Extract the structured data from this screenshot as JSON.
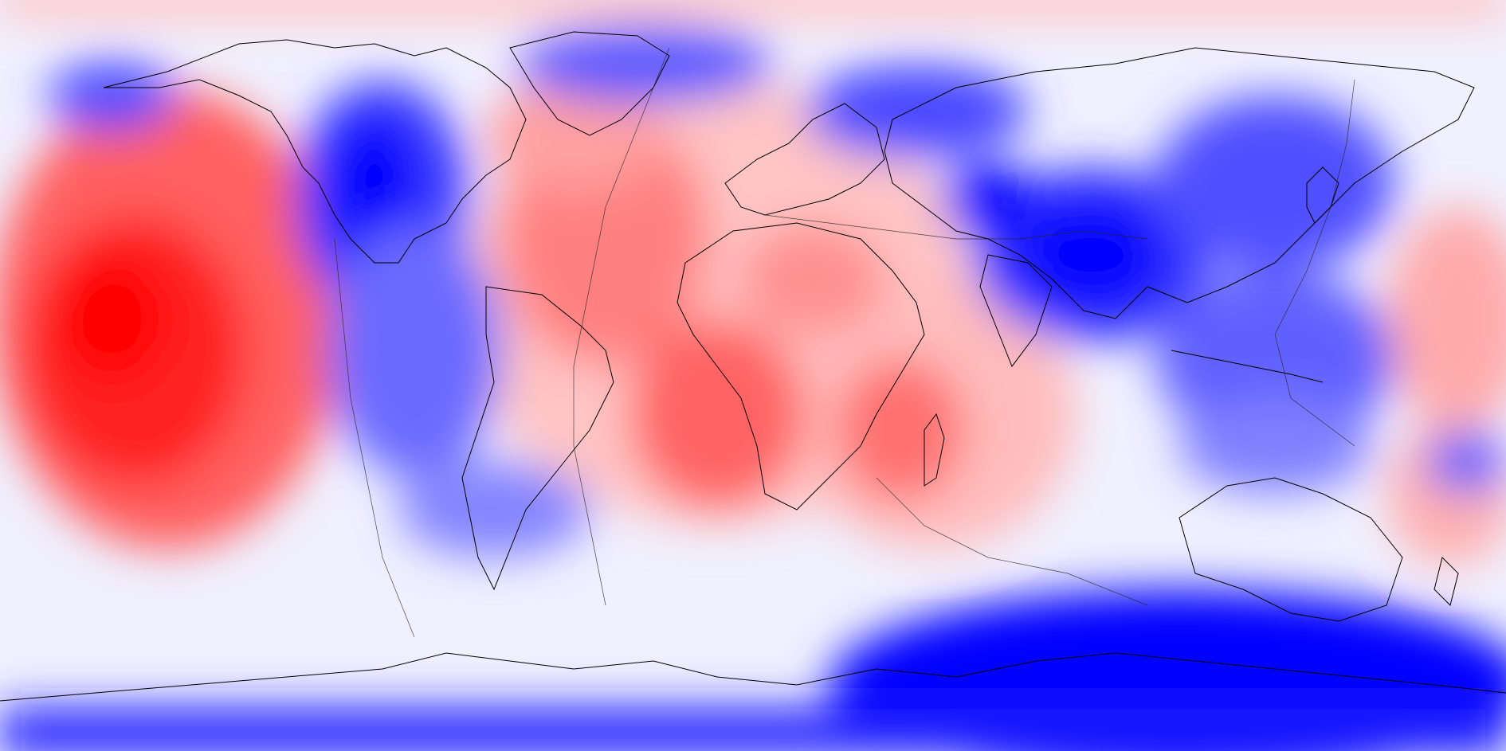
{
  "map": {
    "projection": "equirectangular",
    "basemap": "coastlines-and-plate-boundaries",
    "colormap": "blue-white-red",
    "colors": {
      "strong_negative": "#0000ff",
      "negative": "#6a6aff",
      "weak_negative": "#c8c8ff",
      "neutral": "#f5f5ff",
      "weak_positive": "#ffd0d0",
      "positive": "#ff7a7a",
      "strong_positive": "#ff0000",
      "outline": "#000000"
    },
    "anomalies": [
      {
        "name": "central-pacific-high",
        "sign": "positive",
        "lon": -140,
        "lat": -10,
        "strength": 1.0
      },
      {
        "name": "south-pacific-high",
        "sign": "positive",
        "lon": -160,
        "lat": -35,
        "strength": 0.8
      },
      {
        "name": "north-pacific-positive",
        "sign": "positive",
        "lon": -175,
        "lat": 25,
        "strength": 0.6
      },
      {
        "name": "atlantic-positive",
        "sign": "positive",
        "lon": -35,
        "lat": 20,
        "strength": 0.6
      },
      {
        "name": "south-atlantic-positive",
        "sign": "positive",
        "lon": -10,
        "lat": -30,
        "strength": 0.7
      },
      {
        "name": "west-africa-positive",
        "sign": "positive",
        "lon": 0,
        "lat": 5,
        "strength": 0.6
      },
      {
        "name": "south-indian-positive",
        "sign": "positive",
        "lon": 55,
        "lat": -30,
        "strength": 0.6
      },
      {
        "name": "greenland-positive",
        "sign": "positive",
        "lon": -40,
        "lat": 60,
        "strength": 0.4
      },
      {
        "name": "north-america-negative",
        "sign": "negative",
        "lon": -110,
        "lat": 40,
        "strength": 1.0
      },
      {
        "name": "east-pacific-negative",
        "sign": "negative",
        "lon": -90,
        "lat": -20,
        "strength": 0.7
      },
      {
        "name": "tibet-negative",
        "sign": "negative",
        "lon": 85,
        "lat": 15,
        "strength": 1.0
      },
      {
        "name": "middle-east-negative",
        "sign": "negative",
        "lon": 45,
        "lat": 30,
        "strength": 0.8
      },
      {
        "name": "east-asia-negative",
        "sign": "negative",
        "lon": 120,
        "lat": 40,
        "strength": 0.7
      },
      {
        "name": "western-pacific-negative",
        "sign": "negative",
        "lon": 130,
        "lat": -15,
        "strength": 0.7
      },
      {
        "name": "siberia-negative",
        "sign": "negative",
        "lon": 50,
        "lat": 65,
        "strength": 0.6
      },
      {
        "name": "antarctica-negative",
        "sign": "negative",
        "lon": 120,
        "lat": -80,
        "strength": 1.0
      },
      {
        "name": "alaska-negative",
        "sign": "negative",
        "lon": -150,
        "lat": 65,
        "strength": 0.6
      }
    ]
  }
}
